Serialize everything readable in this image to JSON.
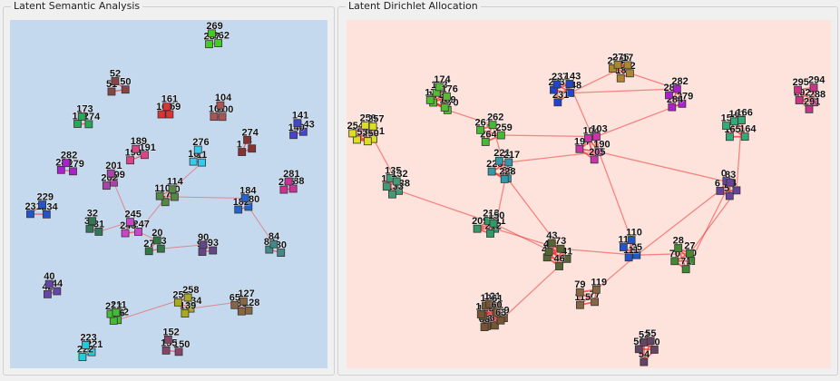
{
  "panels": {
    "lsa": {
      "title": "Latent Semantic Analysis",
      "background": "#c5d9ee"
    },
    "lda": {
      "title": "Latent Dirichlet Allocation",
      "background": "#fde3dc"
    }
  },
  "lsa_clusters": [
    {
      "color": "#44cc22",
      "nodes": [
        "262",
        "267",
        "269"
      ]
    },
    {
      "color": "#884444",
      "nodes": [
        "50",
        "51",
        "52"
      ]
    },
    {
      "color": "#dd3333",
      "nodes": [
        "159",
        "160",
        "161"
      ]
    },
    {
      "color": "#aa5555",
      "nodes": [
        "100",
        "101",
        "104"
      ]
    },
    {
      "color": "#22aa55",
      "nodes": [
        "174",
        "172",
        "173"
      ]
    },
    {
      "color": "#883333",
      "nodes": [
        "3",
        "1",
        "274"
      ]
    },
    {
      "color": "#4444cc",
      "nodes": [
        "143",
        "140",
        "141"
      ]
    },
    {
      "color": "#dd4488",
      "nodes": [
        "191",
        "190",
        "189"
      ]
    },
    {
      "color": "#aa22cc",
      "nodes": [
        "279",
        "283",
        "282"
      ]
    },
    {
      "color": "#aa44aa",
      "nodes": [
        "199",
        "202",
        "201"
      ]
    },
    {
      "color": "#33ccee",
      "nodes": [
        "11",
        "16",
        "276"
      ]
    },
    {
      "color": "#cc3399",
      "nodes": [
        "288",
        "285",
        "281"
      ]
    },
    {
      "color": "#2255cc",
      "nodes": [
        "234",
        "231",
        "229"
      ]
    },
    {
      "color": "#337755",
      "nodes": [
        "31",
        "36",
        "32"
      ]
    },
    {
      "color": "#cc44cc",
      "nodes": [
        "247",
        "248",
        "245"
      ]
    },
    {
      "color": "#558844",
      "nodes": [
        "70",
        "17",
        "110",
        "114"
      ]
    },
    {
      "color": "#2266cc",
      "nodes": [
        "180",
        "182",
        "184"
      ]
    },
    {
      "color": "#337744",
      "nodes": [
        "23",
        "27",
        "20"
      ]
    },
    {
      "color": "#664488",
      "nodes": [
        "93",
        "92",
        "90"
      ]
    },
    {
      "color": "#448888",
      "nodes": [
        "80",
        "82",
        "84"
      ]
    },
    {
      "color": "#6644aa",
      "nodes": [
        "44",
        "42",
        "40"
      ]
    },
    {
      "color": "#44bb33",
      "nodes": [
        "132",
        "136",
        "213",
        "211"
      ]
    },
    {
      "color": "#aaaa22",
      "nodes": [
        "134",
        "139",
        "254",
        "258"
      ]
    },
    {
      "color": "#886644",
      "nodes": [
        "128",
        "66",
        "65",
        "127"
      ]
    },
    {
      "color": "#22ccdd",
      "nodes": [
        "221",
        "222",
        "223"
      ]
    },
    {
      "color": "#884466",
      "nodes": [
        "150",
        "155",
        "152"
      ]
    }
  ],
  "lda_clusters": [
    {
      "color": "#dddd22",
      "nodes": [
        "251",
        "250",
        "253",
        "254",
        "258",
        "257"
      ]
    },
    {
      "color": "#449977",
      "nodes": [
        "138",
        "133",
        "130",
        "135",
        "132"
      ]
    },
    {
      "color": "#55bb33",
      "nodes": [
        "170",
        "169",
        "172",
        "171",
        "173",
        "174",
        "176"
      ]
    },
    {
      "color": "#cc3388",
      "nodes": [
        "288",
        "291",
        "292",
        "295",
        "294"
      ]
    },
    {
      "color": "#aa8833",
      "nodes": [
        "12",
        "18",
        "274",
        "275",
        "17"
      ]
    },
    {
      "color": "#2244cc",
      "nodes": [
        "148",
        "231",
        "233",
        "237",
        "143"
      ]
    },
    {
      "color": "#aa22cc",
      "nodes": [
        "279",
        "284",
        "283",
        "282"
      ]
    },
    {
      "color": "#33aa77",
      "nodes": [
        "164",
        "165",
        "159",
        "161",
        "166"
      ]
    },
    {
      "color": "#44bb33",
      "nodes": [
        "259",
        "264",
        "261",
        "262"
      ]
    },
    {
      "color": "#cc33aa",
      "nodes": [
        "190",
        "205",
        "197",
        "104",
        "103"
      ]
    },
    {
      "color": "#3399aa",
      "nodes": [
        "38",
        "228",
        "225",
        "221",
        "217"
      ]
    },
    {
      "color": "#339966",
      "nodes": [
        "211",
        "212",
        "209",
        "213",
        "150"
      ]
    },
    {
      "color": "#664499",
      "nodes": [
        "4",
        "5",
        "6",
        "0",
        "83"
      ]
    },
    {
      "color": "#2255cc",
      "nodes": [
        "25",
        "111",
        "118",
        "110"
      ]
    },
    {
      "color": "#556633",
      "nodes": [
        "41",
        "46",
        "45",
        "40",
        "43",
        "73"
      ]
    },
    {
      "color": "#448833",
      "nodes": [
        "90",
        "71",
        "70",
        "28",
        "27"
      ]
    },
    {
      "color": "#775533",
      "nodes": [
        "69",
        "67",
        "68",
        "66",
        "123",
        "126",
        "125",
        "121",
        "61",
        "60",
        "63"
      ]
    },
    {
      "color": "#886644",
      "nodes": [
        "77",
        "115",
        "79",
        "119"
      ]
    },
    {
      "color": "#664466",
      "nodes": [
        "50",
        "54",
        "56",
        "52",
        "55"
      ]
    }
  ]
}
